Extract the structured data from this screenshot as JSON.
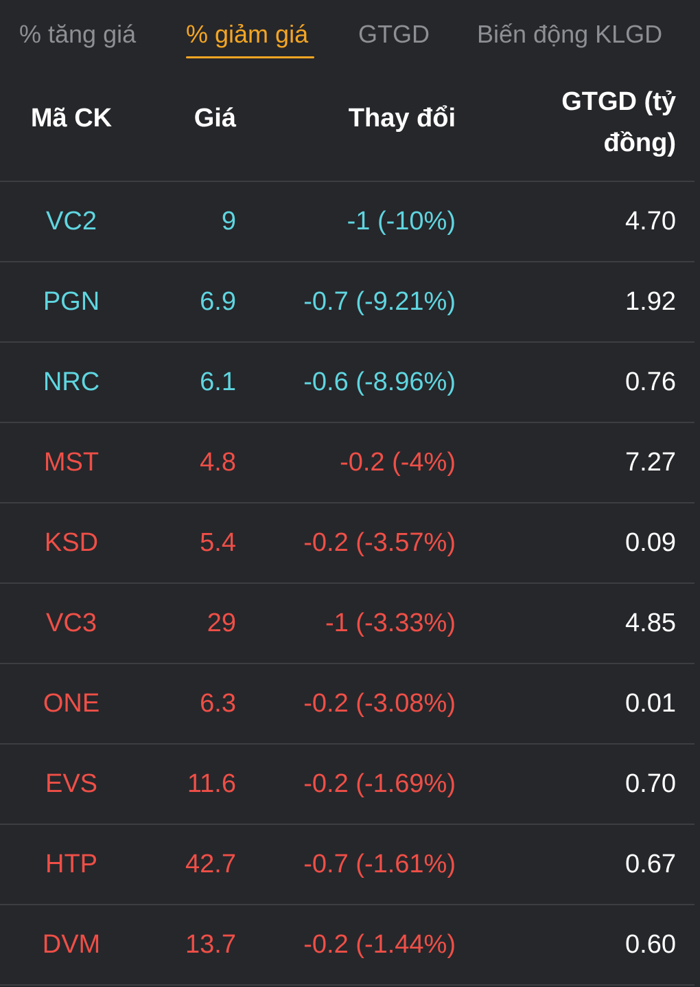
{
  "tabs": [
    {
      "label": "% tăng giá",
      "active": false
    },
    {
      "label": "% giảm giá",
      "active": true
    },
    {
      "label": "GTGD",
      "active": false
    },
    {
      "label": "Biến động KLGD",
      "active": false
    }
  ],
  "table": {
    "headers": {
      "code": "Mã CK",
      "price": "Giá",
      "change": "Thay đổi",
      "value": "GTGD (tỷ đồng)"
    },
    "rows": [
      {
        "code": "VC2",
        "price": "9",
        "change": "-1 (-10%)",
        "value": "4.70",
        "status": "floor"
      },
      {
        "code": "PGN",
        "price": "6.9",
        "change": "-0.7 (-9.21%)",
        "value": "1.92",
        "status": "floor"
      },
      {
        "code": "NRC",
        "price": "6.1",
        "change": "-0.6 (-8.96%)",
        "value": "0.76",
        "status": "floor"
      },
      {
        "code": "MST",
        "price": "4.8",
        "change": "-0.2 (-4%)",
        "value": "7.27",
        "status": "down"
      },
      {
        "code": "KSD",
        "price": "5.4",
        "change": "-0.2 (-3.57%)",
        "value": "0.09",
        "status": "down"
      },
      {
        "code": "VC3",
        "price": "29",
        "change": "-1 (-3.33%)",
        "value": "4.85",
        "status": "down"
      },
      {
        "code": "ONE",
        "price": "6.3",
        "change": "-0.2 (-3.08%)",
        "value": "0.01",
        "status": "down"
      },
      {
        "code": "EVS",
        "price": "11.6",
        "change": "-0.2 (-1.69%)",
        "value": "0.70",
        "status": "down"
      },
      {
        "code": "HTP",
        "price": "42.7",
        "change": "-0.7 (-1.61%)",
        "value": "0.67",
        "status": "down"
      },
      {
        "code": "DVM",
        "price": "13.7",
        "change": "-0.2 (-1.44%)",
        "value": "0.60",
        "status": "down"
      }
    ]
  },
  "colors": {
    "background": "#26272b",
    "active_tab": "#f5a623",
    "inactive_tab": "#8e8f94",
    "floor_price": "#5fd6e0",
    "decrease": "#ef4f47",
    "divider": "#3d3e42"
  }
}
